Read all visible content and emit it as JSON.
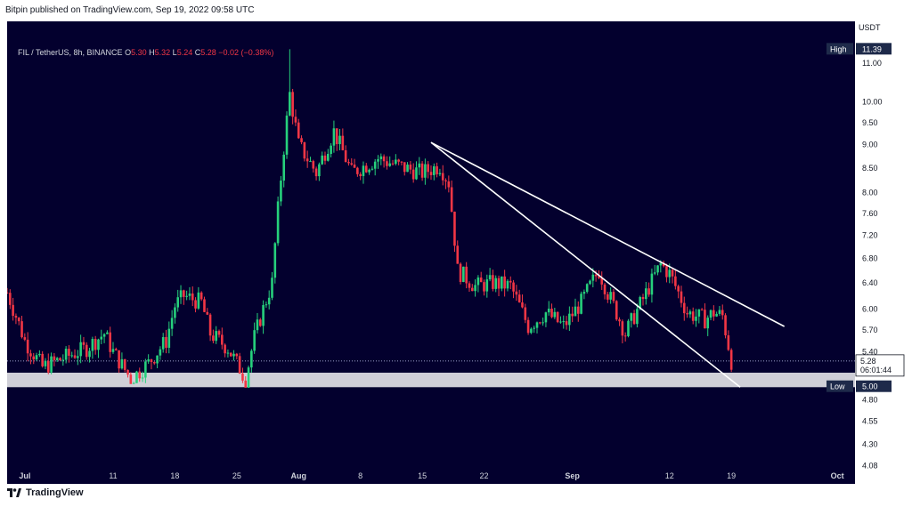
{
  "header": {
    "publisher": "Bitpin published on TradingView.com, Sep 19, 2022 09:58 UTC"
  },
  "legend": {
    "symbol": "FIL / TetherUS, 8h, BINANCE",
    "o_label": "O",
    "o_value": "5.30",
    "h_label": "H",
    "h_value": "5.32",
    "l_label": "L",
    "l_value": "5.24",
    "c_label": "C",
    "c_value": "5.28",
    "change": "−0.02 (−0.38%)"
  },
  "price_scale": {
    "currency": "USDT",
    "ticks": [
      "11.00",
      "10.00",
      "9.50",
      "9.00",
      "8.50",
      "8.00",
      "7.60",
      "7.20",
      "6.80",
      "6.40",
      "6.00",
      "5.70",
      "5.40",
      "4.80",
      "4.55",
      "4.30",
      "4.08"
    ],
    "high_label": "High",
    "high_value": "11.39",
    "low_label": "Low",
    "low_value": "5.00",
    "last_price": "5.28",
    "countdown": "06:01:44"
  },
  "time_scale": {
    "labels": [
      "Jul",
      "11",
      "18",
      "25",
      "Aug",
      "8",
      "15",
      "22",
      "Sep",
      "12",
      "19",
      "Oct"
    ]
  },
  "footer": {
    "brand": "TradingView"
  },
  "colors": {
    "background": "#03002e",
    "up": "#26d07c",
    "down": "#f23645",
    "trendline": "#ffffff",
    "zone": "#e1e1e6"
  },
  "chart_data": {
    "type": "candlestick",
    "symbol": "FIL / TetherUS",
    "interval": "8h",
    "exchange": "BINANCE",
    "ylim": [
      3.9,
      12.2
    ],
    "y_scale": "log",
    "x_range": [
      "2022-06-29",
      "2022-10-03"
    ],
    "ohlc_path": [
      [
        "2022-06-29",
        6.25
      ],
      [
        "2022-07-01",
        5.55
      ],
      [
        "2022-07-03",
        5.2
      ],
      [
        "2022-07-05",
        5.3
      ],
      [
        "2022-07-08",
        5.45
      ],
      [
        "2022-07-10",
        5.65
      ],
      [
        "2022-07-11",
        5.4
      ],
      [
        "2022-07-13",
        5.05
      ],
      [
        "2022-07-15",
        5.25
      ],
      [
        "2022-07-17",
        5.55
      ],
      [
        "2022-07-18",
        6.05
      ],
      [
        "2022-07-19",
        6.2
      ],
      [
        "2022-07-21",
        6.1
      ],
      [
        "2022-07-22",
        5.65
      ],
      [
        "2022-07-24",
        5.45
      ],
      [
        "2022-07-26",
        5.05
      ],
      [
        "2022-07-27",
        5.6
      ],
      [
        "2022-07-29",
        6.4
      ],
      [
        "2022-07-30",
        8.3
      ],
      [
        "2022-07-31",
        10.2
      ],
      [
        "2022-08-01",
        9.0
      ],
      [
        "2022-08-03",
        8.4
      ],
      [
        "2022-08-05",
        9.3
      ],
      [
        "2022-08-07",
        8.4
      ],
      [
        "2022-08-10",
        8.7
      ],
      [
        "2022-08-13",
        8.5
      ],
      [
        "2022-08-15",
        8.4
      ],
      [
        "2022-08-17",
        8.55
      ],
      [
        "2022-08-18",
        8.2
      ],
      [
        "2022-08-19",
        6.6
      ],
      [
        "2022-08-21",
        6.35
      ],
      [
        "2022-08-23",
        6.4
      ],
      [
        "2022-08-25",
        6.35
      ],
      [
        "2022-08-27",
        5.75
      ],
      [
        "2022-08-29",
        5.95
      ],
      [
        "2022-08-31",
        5.75
      ],
      [
        "2022-09-02",
        6.1
      ],
      [
        "2022-09-04",
        6.6
      ],
      [
        "2022-09-05",
        6.25
      ],
      [
        "2022-09-07",
        5.65
      ],
      [
        "2022-09-09",
        6.15
      ],
      [
        "2022-09-11",
        6.7
      ],
      [
        "2022-09-12",
        6.55
      ],
      [
        "2022-09-14",
        5.95
      ],
      [
        "2022-09-16",
        5.85
      ],
      [
        "2022-09-17",
        5.95
      ],
      [
        "2022-09-18",
        5.9
      ],
      [
        "2022-09-19",
        5.28
      ]
    ],
    "high": 11.39,
    "low": 5.0,
    "last": 5.28,
    "trendlines": [
      {
        "from": [
          "2022-08-16",
          9.05
        ],
        "to": [
          "2022-09-25",
          5.75
        ]
      },
      {
        "from": [
          "2022-08-16",
          9.05
        ],
        "to": [
          "2022-09-20",
          4.95
        ]
      }
    ],
    "support_zone": [
      4.95,
      5.13
    ]
  }
}
